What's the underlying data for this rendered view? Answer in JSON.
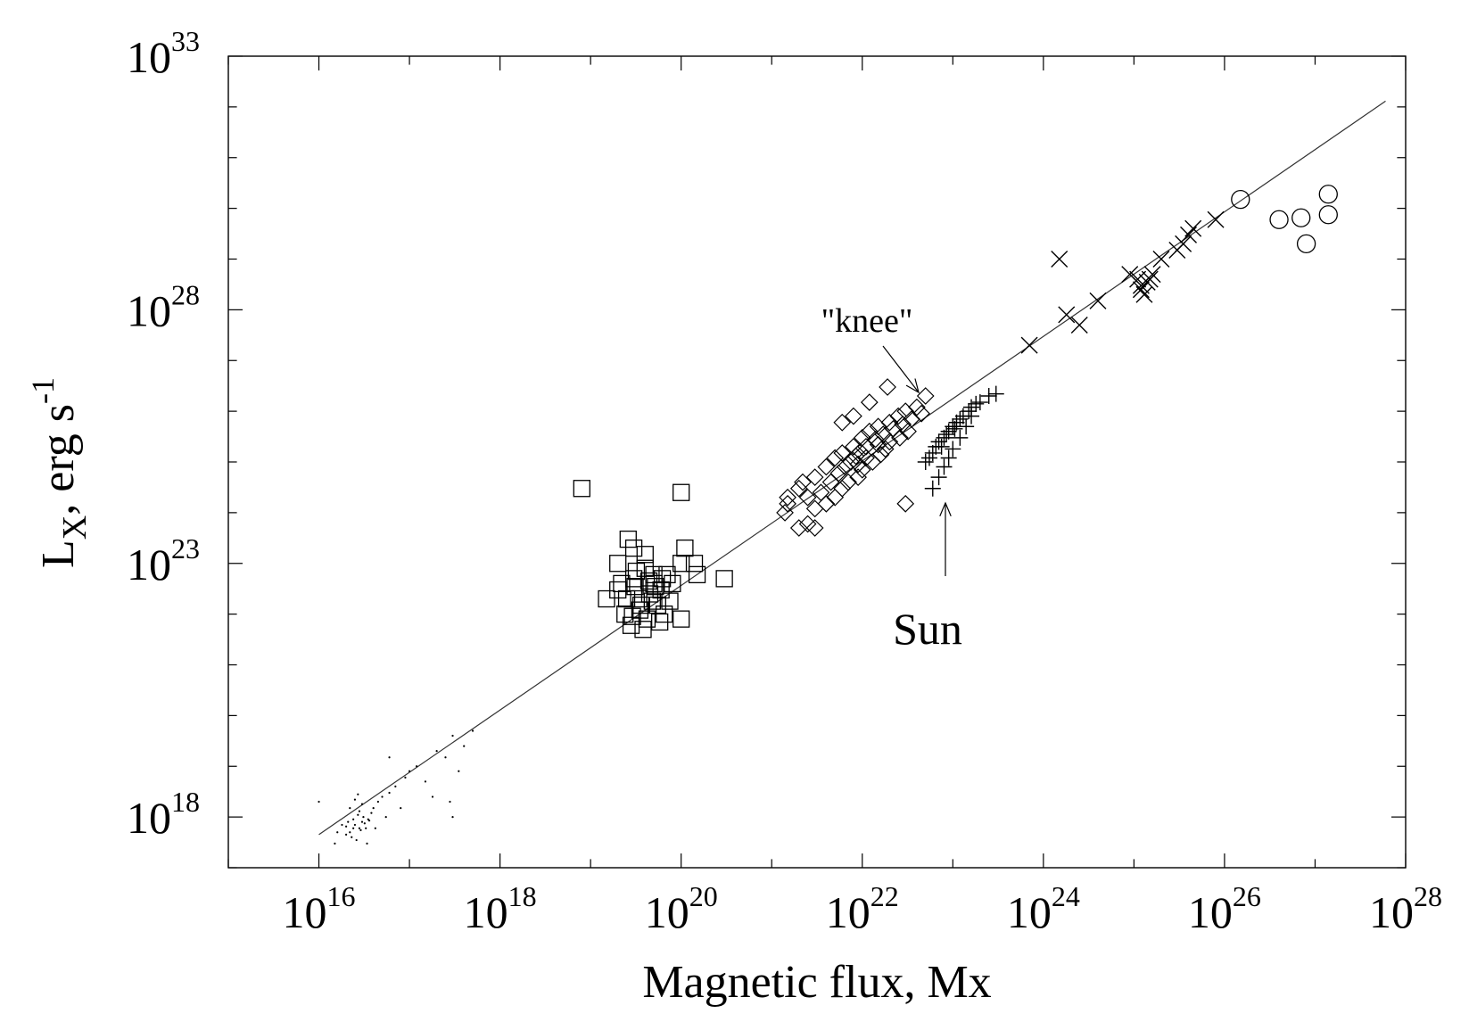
{
  "chart_data": {
    "type": "scatter",
    "title": "",
    "xlabel": {
      "base": "Magnetic flux, Mx"
    },
    "ylabel": {
      "main": "L",
      "sub": "X",
      "rest": ", erg s",
      "sup": "-1"
    },
    "xscale": "log",
    "yscale": "log",
    "xlim": [
      1000000000000000.0,
      1e+28
    ],
    "ylim": [
      1e+17,
      1e+33
    ],
    "x_ticks": [
      {
        "base": "10",
        "exp": "16",
        "value": 1e+16
      },
      {
        "base": "10",
        "exp": "18",
        "value": 1e+18
      },
      {
        "base": "10",
        "exp": "20",
        "value": 1e+20
      },
      {
        "base": "10",
        "exp": "22",
        "value": 1e+22
      },
      {
        "base": "10",
        "exp": "24",
        "value": 1e+24
      },
      {
        "base": "10",
        "exp": "26",
        "value": 1e+26
      },
      {
        "base": "10",
        "exp": "28",
        "value": 1e+28
      }
    ],
    "y_ticks": [
      {
        "base": "10",
        "exp": "18",
        "value": 1e+18
      },
      {
        "base": "10",
        "exp": "23",
        "value": 1e+23
      },
      {
        "base": "10",
        "exp": "28",
        "value": 1e+28
      },
      {
        "base": "10",
        "exp": "33",
        "value": 1e+33
      }
    ],
    "grid": false,
    "fit_line": {
      "x": [
        1e+16,
        6e+27
      ],
      "y": [
        4.5e+17,
        1.3e+32
      ]
    },
    "annotations": [
      {
        "text": "\"knee\"",
        "x": 5e+22,
        "y": 3e+27,
        "arrow_to": [
          5e+22,
          1e+26
        ]
      },
      {
        "text": "Sun",
        "x": 1e+23,
        "y": 1e+22,
        "arrow_to": [
          1e+23,
          3e+24
        ]
      }
    ],
    "series": [
      {
        "marker": "dot",
        "points": [
          [
            2.5e+16,
            7e+17
          ],
          [
            2.2e+16,
            5e+17
          ],
          [
            3e+16,
            8e+17
          ],
          [
            2.8e+16,
            6e+17
          ],
          [
            2.4e+16,
            9e+17
          ],
          [
            3.2e+16,
            7.5e+17
          ],
          [
            2e+16,
            6.5e+17
          ],
          [
            2.7e+16,
            1.1e+18
          ],
          [
            3.5e+16,
            9e+17
          ],
          [
            2.3e+16,
            4e+17
          ],
          [
            2.9e+16,
            5.5e+17
          ],
          [
            3.8e+16,
            1.2e+18
          ],
          [
            2.1e+16,
            8e+17
          ],
          [
            3.3e+16,
            6e+17
          ],
          [
            2.6e+16,
            3.5e+17
          ],
          [
            4e+16,
            1.5e+18
          ],
          [
            1.8e+16,
            7e+17
          ],
          [
            3.1e+16,
            1e+18
          ],
          [
            2.4e+16,
            6e+17
          ],
          [
            2.8e+16,
            1.3e+18
          ],
          [
            4.5e+16,
            2e+18
          ],
          [
            5e+16,
            2.5e+18
          ],
          [
            2e+16,
            4.5e+17
          ],
          [
            3.6e+16,
            8.5e+17
          ],
          [
            1.6e+16,
            5e+17
          ],
          [
            6e+16,
            3e+18
          ],
          [
            3e+16,
            1.8e+18
          ],
          [
            2.5e+16,
            2.2e+18
          ],
          [
            7e+16,
            4e+18
          ],
          [
            4.2e+16,
            6e+17
          ],
          [
            8e+16,
            1.5e+18
          ],
          [
            2.2e+16,
            1.5e+18
          ],
          [
            1.5e+16,
            3e+17
          ],
          [
            3.4e+16,
            3e+17
          ],
          [
            5.5e+16,
            1e+18
          ],
          [
            2.7e+16,
            2.8e+18
          ],
          [
            1e+16,
            2e+18
          ],
          [
            9e+16,
            6e+18
          ],
          [
            1.2e+17,
            1e+19
          ],
          [
            2e+17,
            2e+19
          ],
          [
            3e+17,
            4e+19
          ],
          [
            2.5e+17,
            1.5e+19
          ],
          [
            1.5e+17,
            5e+18
          ],
          [
            4e+17,
            2.5e+19
          ],
          [
            1e+17,
            8e+18
          ],
          [
            6e+16,
            1.5e+19
          ],
          [
            3.5e+17,
            8e+18
          ],
          [
            2.8e+17,
            2e+18
          ],
          [
            3e+17,
            1e+18
          ],
          [
            1.8e+17,
            2.5e+18
          ],
          [
            5e+17,
            5e+19
          ]
        ]
      },
      {
        "marker": "square",
        "points": [
          [
            8e+18,
            3e+24
          ],
          [
            1e+20,
            2.5e+24
          ],
          [
            2e+19,
            1e+23
          ],
          [
            3e+19,
            5e+22
          ],
          [
            5e+19,
            4e+22
          ],
          [
            4e+19,
            8e+22
          ],
          [
            2.5e+19,
            2e+22
          ],
          [
            6e+19,
            3e+22
          ],
          [
            3.5e+19,
            1.2e+22
          ],
          [
            7e+19,
            6e+22
          ],
          [
            4.5e+19,
            2.5e+22
          ],
          [
            2.2e+19,
            4e+22
          ],
          [
            3.2e+19,
            7e+22
          ],
          [
            5.5e+19,
            1.5e+22
          ],
          [
            2.8e+19,
            6e+21
          ],
          [
            4.2e+19,
            8e+21
          ],
          [
            3.8e+19,
            5e+21
          ],
          [
            6.5e+19,
            1e+22
          ],
          [
            8e+19,
            4e+22
          ],
          [
            1.1e+20,
            2e+23
          ],
          [
            1.4e+20,
            1e+23
          ],
          [
            1.5e+20,
            6e+22
          ],
          [
            3e+20,
            5e+22
          ],
          [
            1e+20,
            1e+23
          ],
          [
            1e+20,
            8e+21
          ],
          [
            2e+19,
            3e+22
          ],
          [
            3e+19,
            2e+23
          ],
          [
            4e+19,
            1.5e+23
          ],
          [
            2.6e+19,
            3e+23
          ],
          [
            5e+19,
            6e+22
          ],
          [
            1.5e+19,
            2e+22
          ],
          [
            3.4e+19,
            2e+22
          ],
          [
            4.8e+19,
            1.8e+22
          ],
          [
            2.4e+19,
            1e+22
          ],
          [
            5.2e+19,
            3.5e+22
          ],
          [
            7.5e+19,
            1.8e+22
          ],
          [
            3.6e+19,
            1.5e+22
          ],
          [
            4.4e+19,
            4.5e+22
          ],
          [
            6.2e+19,
            5e+22
          ],
          [
            2.9e+19,
            9e+21
          ],
          [
            5.8e+19,
            7e+21
          ],
          [
            3.1e+19,
            3.5e+22
          ]
        ]
      },
      {
        "marker": "diamond",
        "points": [
          [
            1.5e+21,
            2e+24
          ],
          [
            2e+21,
            3e+24
          ],
          [
            3e+21,
            5e+24
          ],
          [
            4e+21,
            8e+24
          ],
          [
            5e+21,
            1.2e+25
          ],
          [
            6e+21,
            1.5e+25
          ],
          [
            8e+21,
            2e+25
          ],
          [
            1e+22,
            3e+25
          ],
          [
            1.2e+22,
            4e+25
          ],
          [
            1.5e+22,
            5e+25
          ],
          [
            2e+22,
            6e+25
          ],
          [
            2.5e+22,
            8e+25
          ],
          [
            3e+22,
            1e+26
          ],
          [
            4e+22,
            1.2e+26
          ],
          [
            5e+22,
            2e+26
          ],
          [
            2e+22,
            2.5e+25
          ],
          [
            1.8e+22,
            1.8e+25
          ],
          [
            1.3e+22,
            1e+25
          ],
          [
            1e+22,
            7e+24
          ],
          [
            9e+21,
            5e+24
          ],
          [
            7e+21,
            4e+24
          ],
          [
            6e+21,
            3e+24
          ],
          [
            5e+21,
            2e+24
          ],
          [
            4e+21,
            1.5e+24
          ],
          [
            3e+21,
            1.2e+24
          ],
          [
            2.5e+21,
            2e+24
          ],
          [
            3.5e+21,
            2.5e+24
          ],
          [
            4.5e+21,
            4e+24
          ],
          [
            5.5e+21,
            6e+24
          ],
          [
            6.5e+21,
            8e+24
          ],
          [
            7.5e+21,
            1e+25
          ],
          [
            8.5e+21,
            1.3e+25
          ],
          [
            9.5e+21,
            1.6e+25
          ],
          [
            1.1e+22,
            2e+25
          ],
          [
            1.4e+22,
            2.8e+25
          ],
          [
            1.7e+22,
            3.5e+25
          ],
          [
            2.2e+22,
            4.5e+25
          ],
          [
            2.8e+22,
            5.5e+25
          ],
          [
            3.5e+22,
            7e+25
          ],
          [
            4.5e+22,
            9e+25
          ],
          [
            2.6e+22,
            3e+25
          ],
          [
            3.2e+22,
            4e+25
          ],
          [
            1.6e+22,
            1.4e+25
          ],
          [
            1.9e+22,
            3e+26
          ],
          [
            1.2e+22,
            1.5e+26
          ],
          [
            8e+21,
            8e+25
          ],
          [
            6e+21,
            6e+25
          ],
          [
            2e+21,
            5e+23
          ],
          [
            2.5e+21,
            6e+23
          ],
          [
            3e+21,
            5e+23
          ],
          [
            3e+22,
            1.5e+24
          ],
          [
            1.4e+21,
            1e+24
          ],
          [
            1.5e+21,
            1.5e+24
          ],
          [
            2.2e+21,
            4e+24
          ],
          [
            9e+21,
            9e+24
          ],
          [
            1.1e+22,
            1.2e+25
          ],
          [
            1.5e+22,
            2.2e+25
          ]
        ]
      },
      {
        "marker": "plus",
        "points": [
          [
            5e+22,
            1e+25
          ],
          [
            5.5e+22,
            1.2e+25
          ],
          [
            6e+22,
            1.5e+25
          ],
          [
            6.5e+22,
            2e+25
          ],
          [
            7e+22,
            2.5e+25
          ],
          [
            8e+22,
            3e+25
          ],
          [
            9e+22,
            4e+25
          ],
          [
            1e+23,
            5e+25
          ],
          [
            1.1e+23,
            6e+25
          ],
          [
            1.2e+23,
            7e+25
          ],
          [
            1.3e+23,
            8e+25
          ],
          [
            1.5e+23,
            1e+26
          ],
          [
            1.6e+23,
            1.2e+26
          ],
          [
            1.8e+23,
            1.4e+26
          ],
          [
            2e+23,
            1.5e+26
          ],
          [
            2.5e+23,
            2e+26
          ],
          [
            3e+23,
            2.2e+26
          ],
          [
            6e+22,
            3e+24
          ],
          [
            7e+22,
            5e+24
          ],
          [
            8e+22,
            8e+24
          ],
          [
            9e+22,
            1.2e+25
          ],
          [
            1e+23,
            1.8e+25
          ],
          [
            1.2e+23,
            3e+25
          ],
          [
            1.4e+23,
            5e+25
          ],
          [
            1.6e+23,
            8e+25
          ],
          [
            7.5e+22,
            2e+25
          ],
          [
            8.5e+22,
            3.5e+25
          ],
          [
            1.05e+23,
            4.5e+25
          ]
        ]
      },
      {
        "marker": "x",
        "points": [
          [
            1.5e+24,
            1e+29
          ],
          [
            7e+23,
            2e+27
          ],
          [
            1.8e+24,
            8e+27
          ],
          [
            2.5e+24,
            5e+27
          ],
          [
            4e+24,
            1.5e+28
          ],
          [
            9e+24,
            5e+28
          ],
          [
            1.1e+25,
            4e+28
          ],
          [
            1.2e+25,
            3e+28
          ],
          [
            1.3e+25,
            2e+28
          ],
          [
            1.5e+25,
            4e+28
          ],
          [
            1.6e+25,
            5e+28
          ],
          [
            1.2e+25,
            2.5e+28
          ],
          [
            1.4e+25,
            3.5e+28
          ],
          [
            2e+25,
            1e+29
          ],
          [
            3e+25,
            1.5e+29
          ],
          [
            3.5e+25,
            2e+29
          ],
          [
            4e+25,
            3e+29
          ],
          [
            4.5e+25,
            4e+29
          ],
          [
            8e+25,
            6e+29
          ]
        ]
      },
      {
        "marker": "circle",
        "points": [
          [
            1.5e+26,
            1.5e+30
          ],
          [
            4e+26,
            6e+29
          ],
          [
            7e+26,
            6.5e+29
          ],
          [
            1.4e+27,
            1.9e+30
          ],
          [
            1.4e+27,
            7.5e+29
          ],
          [
            8e+26,
            2e+29
          ]
        ]
      }
    ]
  }
}
